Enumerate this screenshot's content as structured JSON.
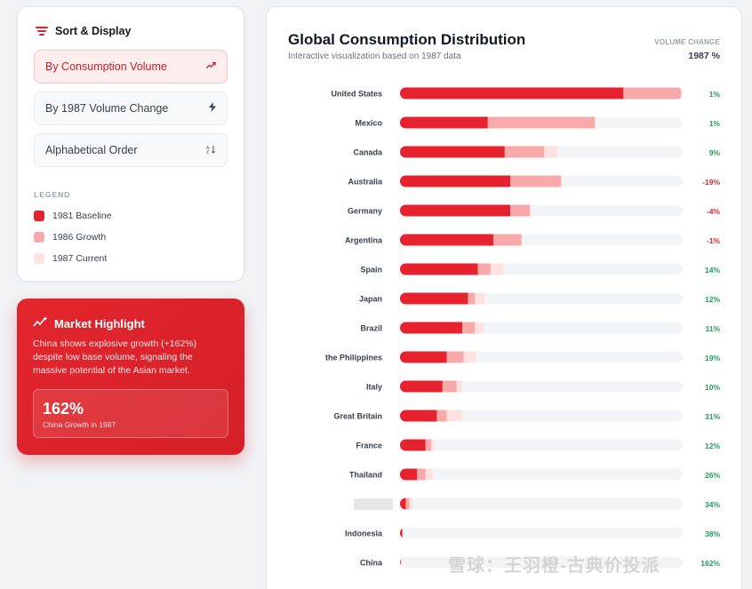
{
  "sidebar": {
    "title": "Sort & Display",
    "options": [
      {
        "label": "By Consumption Volume",
        "icon": "trending-up-icon",
        "active": true
      },
      {
        "label": "By 1987 Volume Change",
        "icon": "lightning-icon",
        "active": false
      },
      {
        "label": "Alphabetical Order",
        "icon": "sort-alpha-icon",
        "active": false
      }
    ],
    "legend_title": "LEGEND",
    "legend": [
      {
        "label": "1981 Baseline",
        "color": "#e5222e"
      },
      {
        "label": "1986 Growth",
        "color": "#f9a9aa"
      },
      {
        "label": "1987 Current",
        "color": "#fde2e1"
      }
    ]
  },
  "highlight": {
    "title": "Market Highlight",
    "text": "China shows explosive growth (+162%) despite low base volume, signaling the massive potential of the Asian market.",
    "value": "162%",
    "value_label": "China Growth in 1987"
  },
  "chart_data": {
    "type": "bar",
    "title": "Global Consumption Distribution",
    "subtitle": "Interactive visualization based on 1987 data",
    "change_header": "VOLUME CHANGE",
    "change_subheader": "1987 %",
    "colors": {
      "base": "#e5222e",
      "growth": "#f9a9aa",
      "current": "#fde2e1",
      "track": "#f3f4f6",
      "pos": "#1f9d55",
      "neg": "#dc2626"
    },
    "max": 1.0,
    "rows": [
      {
        "country": "United States",
        "v1981": 0.79,
        "v1986": 0.994,
        "v1987": 1.0,
        "change": "1%"
      },
      {
        "country": "Mexico",
        "v1981": 0.31,
        "v1986": 0.69,
        "v1987": 0.69,
        "change": "1%"
      },
      {
        "country": "Canada",
        "v1981": 0.37,
        "v1986": 0.51,
        "v1987": 0.555,
        "change": "9%"
      },
      {
        "country": "Australia",
        "v1981": 0.39,
        "v1986": 0.57,
        "v1987": 0.57,
        "change": "-19%"
      },
      {
        "country": "Germany",
        "v1981": 0.39,
        "v1986": 0.46,
        "v1987": 0.46,
        "change": "-4%"
      },
      {
        "country": "Argentina",
        "v1981": 0.33,
        "v1986": 0.43,
        "v1987": 0.43,
        "change": "-1%"
      },
      {
        "country": "Spain",
        "v1981": 0.275,
        "v1986": 0.32,
        "v1987": 0.365,
        "change": "14%"
      },
      {
        "country": "Japan",
        "v1981": 0.24,
        "v1986": 0.265,
        "v1987": 0.3,
        "change": "12%"
      },
      {
        "country": "Brazil",
        "v1981": 0.22,
        "v1986": 0.265,
        "v1987": 0.295,
        "change": "11%"
      },
      {
        "country": "the Philippines",
        "v1981": 0.165,
        "v1986": 0.225,
        "v1987": 0.27,
        "change": "19%"
      },
      {
        "country": "Italy",
        "v1981": 0.15,
        "v1986": 0.2,
        "v1987": 0.22,
        "change": "10%"
      },
      {
        "country": "Great Britain",
        "v1981": 0.13,
        "v1986": 0.165,
        "v1987": 0.22,
        "change": "31%"
      },
      {
        "country": "France",
        "v1981": 0.09,
        "v1986": 0.11,
        "v1987": 0.12,
        "change": "12%"
      },
      {
        "country": "Thailand",
        "v1981": 0.06,
        "v1986": 0.09,
        "v1987": 0.115,
        "change": "26%"
      },
      {
        "country": "",
        "v1981": 0.02,
        "v1986": 0.033,
        "v1987": 0.045,
        "change": "34%"
      },
      {
        "country": "Indonesia",
        "v1981": 0.008,
        "v1986": 0.008,
        "v1987": 0.008,
        "change": "38%"
      },
      {
        "country": "China",
        "v1981": 0.002,
        "v1986": 0.004,
        "v1987": 0.006,
        "change": "162%"
      }
    ]
  },
  "watermark": "雪球：王羽橙-古典价投派"
}
